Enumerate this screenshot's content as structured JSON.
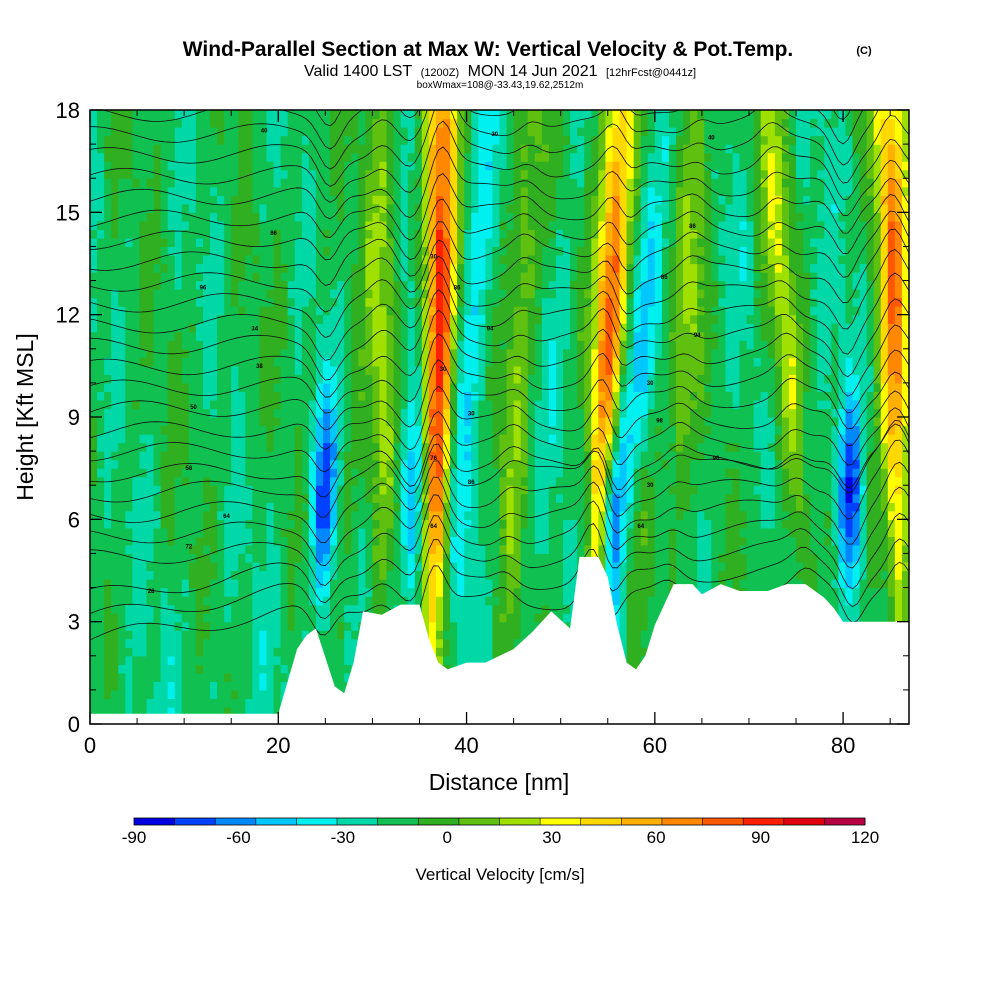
{
  "chart_data": {
    "type": "heatmap",
    "title": "Wind-Parallel Section at Max W: Vertical Velocity & Pot.Temp.",
    "copyright": "(C)",
    "subtitle_main": "Valid 1400 LST",
    "subtitle_utc": "(1200Z)",
    "subtitle_date": "MON 14 Jun 2021",
    "subtitle_fcst": "[12hrFcst@0441z]",
    "box_note": "boxWmax=108@-33.43,19.62,2512m",
    "xlabel": "Distance [nm]",
    "ylabel": "Height [Kft MSL]",
    "xlim": [
      0,
      87
    ],
    "ylim": [
      0,
      18
    ],
    "x_ticks": [
      0,
      20,
      40,
      60,
      80
    ],
    "x_tick_labels": [
      "0",
      "20",
      "40",
      "60",
      "80"
    ],
    "y_ticks": [
      0,
      3,
      6,
      9,
      12,
      15,
      18
    ],
    "y_tick_labels": [
      "0",
      "3",
      "6",
      "9",
      "12",
      "15",
      "18"
    ],
    "colorbar": {
      "label": "Vertical Velocity [cm/s]",
      "min": -90,
      "max": 120,
      "step": 15,
      "tick_values": [
        -90,
        -60,
        -30,
        0,
        30,
        60,
        90,
        120
      ],
      "tick_labels": [
        "-90",
        "-60",
        "-30",
        "0",
        "30",
        "60",
        "90",
        "120"
      ],
      "colors": [
        "#0000e0",
        "#0040ff",
        "#0088ff",
        "#00c8ff",
        "#00f0f0",
        "#00d8a8",
        "#10c050",
        "#30b020",
        "#60c010",
        "#a0e000",
        "#ffff00",
        "#ffd800",
        "#ffb000",
        "#ff8800",
        "#ff5800",
        "#ff2000",
        "#e00010",
        "#b80040"
      ]
    },
    "terrain_kft": [
      [
        0,
        0.3
      ],
      [
        20,
        0.3
      ],
      [
        22,
        2.2
      ],
      [
        23,
        2.6
      ],
      [
        24,
        2.8
      ],
      [
        26,
        1.1
      ],
      [
        27,
        0.9
      ],
      [
        28,
        1.8
      ],
      [
        29,
        3.3
      ],
      [
        31,
        3.2
      ],
      [
        33,
        3.5
      ],
      [
        35,
        3.5
      ],
      [
        36,
        2.5
      ],
      [
        37,
        1.8
      ],
      [
        38,
        1.6
      ],
      [
        40,
        1.8
      ],
      [
        42,
        1.8
      ],
      [
        45,
        2.2
      ],
      [
        47,
        2.7
      ],
      [
        49,
        3.3
      ],
      [
        51,
        2.8
      ],
      [
        52,
        4.9
      ],
      [
        54,
        4.9
      ],
      [
        55,
        4.3
      ],
      [
        56,
        2.9
      ],
      [
        57,
        1.8
      ],
      [
        58,
        1.6
      ],
      [
        59,
        2.0
      ],
      [
        60,
        2.9
      ],
      [
        62,
        4.1
      ],
      [
        64,
        4.1
      ],
      [
        65,
        3.8
      ],
      [
        67,
        4.1
      ],
      [
        69,
        3.9
      ],
      [
        72,
        3.9
      ],
      [
        74,
        4.1
      ],
      [
        76,
        4.1
      ],
      [
        78,
        3.7
      ],
      [
        79,
        3.4
      ],
      [
        80,
        3.0
      ],
      [
        87,
        3.0
      ]
    ],
    "updrafts": [
      {
        "x": 36.5,
        "top_x": 37.5,
        "peak_cm_s": 108,
        "sign": 1
      },
      {
        "x": 53.5,
        "top_x": 56.5,
        "peak_cm_s": 95,
        "sign": 1
      },
      {
        "x": 86,
        "top_x": 85,
        "peak_cm_s": 80,
        "sign": 1
      },
      {
        "x": 44,
        "top_x": 47,
        "peak_cm_s": 30,
        "sign": 1
      },
      {
        "x": 31,
        "top_x": 31,
        "peak_cm_s": 30,
        "sign": 1
      },
      {
        "x": 61.5,
        "top_x": 65,
        "peak_cm_s": 28,
        "sign": 1
      },
      {
        "x": 76,
        "top_x": 72,
        "peak_cm_s": 35,
        "sign": 1
      }
    ],
    "downdrafts": [
      {
        "x": 24.7,
        "top_x": 25.5,
        "peak_cm_s": -75,
        "sign": -1
      },
      {
        "x": 34.5,
        "top_x": 34,
        "peak_cm_s": -45,
        "sign": -1
      },
      {
        "x": 55,
        "top_x": 57,
        "peak_cm_s": -80,
        "sign": -1
      },
      {
        "x": 81,
        "top_x": 80,
        "peak_cm_s": -85,
        "sign": -1
      }
    ],
    "theta_contour_labels": [
      {
        "text": "28",
        "x": 6.5,
        "y": 3.9
      },
      {
        "text": "72",
        "x": 10.5,
        "y": 5.2
      },
      {
        "text": "64",
        "x": 14.5,
        "y": 6.1
      },
      {
        "text": "58",
        "x": 10.5,
        "y": 7.5
      },
      {
        "text": "50",
        "x": 11,
        "y": 9.3
      },
      {
        "text": "38",
        "x": 18,
        "y": 10.5
      },
      {
        "text": "34",
        "x": 17.5,
        "y": 11.6
      },
      {
        "text": "96",
        "x": 12,
        "y": 12.8
      },
      {
        "text": "86",
        "x": 19.5,
        "y": 14.4
      },
      {
        "text": "40",
        "x": 18.5,
        "y": 17.4
      },
      {
        "text": "64",
        "x": 36.5,
        "y": 5.8
      },
      {
        "text": "76",
        "x": 36.5,
        "y": 7.8
      },
      {
        "text": "86",
        "x": 40.5,
        "y": 7.1
      },
      {
        "text": "30",
        "x": 40.5,
        "y": 9.1
      },
      {
        "text": "30",
        "x": 37.5,
        "y": 10.4
      },
      {
        "text": "94",
        "x": 42.5,
        "y": 11.6
      },
      {
        "text": "86",
        "x": 39,
        "y": 12.8
      },
      {
        "text": "30",
        "x": 36.5,
        "y": 13.7
      },
      {
        "text": "30",
        "x": 43,
        "y": 17.3
      },
      {
        "text": "64",
        "x": 58.5,
        "y": 5.8
      },
      {
        "text": "30",
        "x": 59.5,
        "y": 7.0
      },
      {
        "text": "98",
        "x": 60.5,
        "y": 8.9
      },
      {
        "text": "30",
        "x": 59.5,
        "y": 10.0
      },
      {
        "text": "94",
        "x": 64.5,
        "y": 11.4
      },
      {
        "text": "86",
        "x": 61,
        "y": 13.1
      },
      {
        "text": "86",
        "x": 64,
        "y": 14.6
      },
      {
        "text": "40",
        "x": 66,
        "y": 17.2
      },
      {
        "text": "96",
        "x": 66.5,
        "y": 7.8
      }
    ]
  }
}
